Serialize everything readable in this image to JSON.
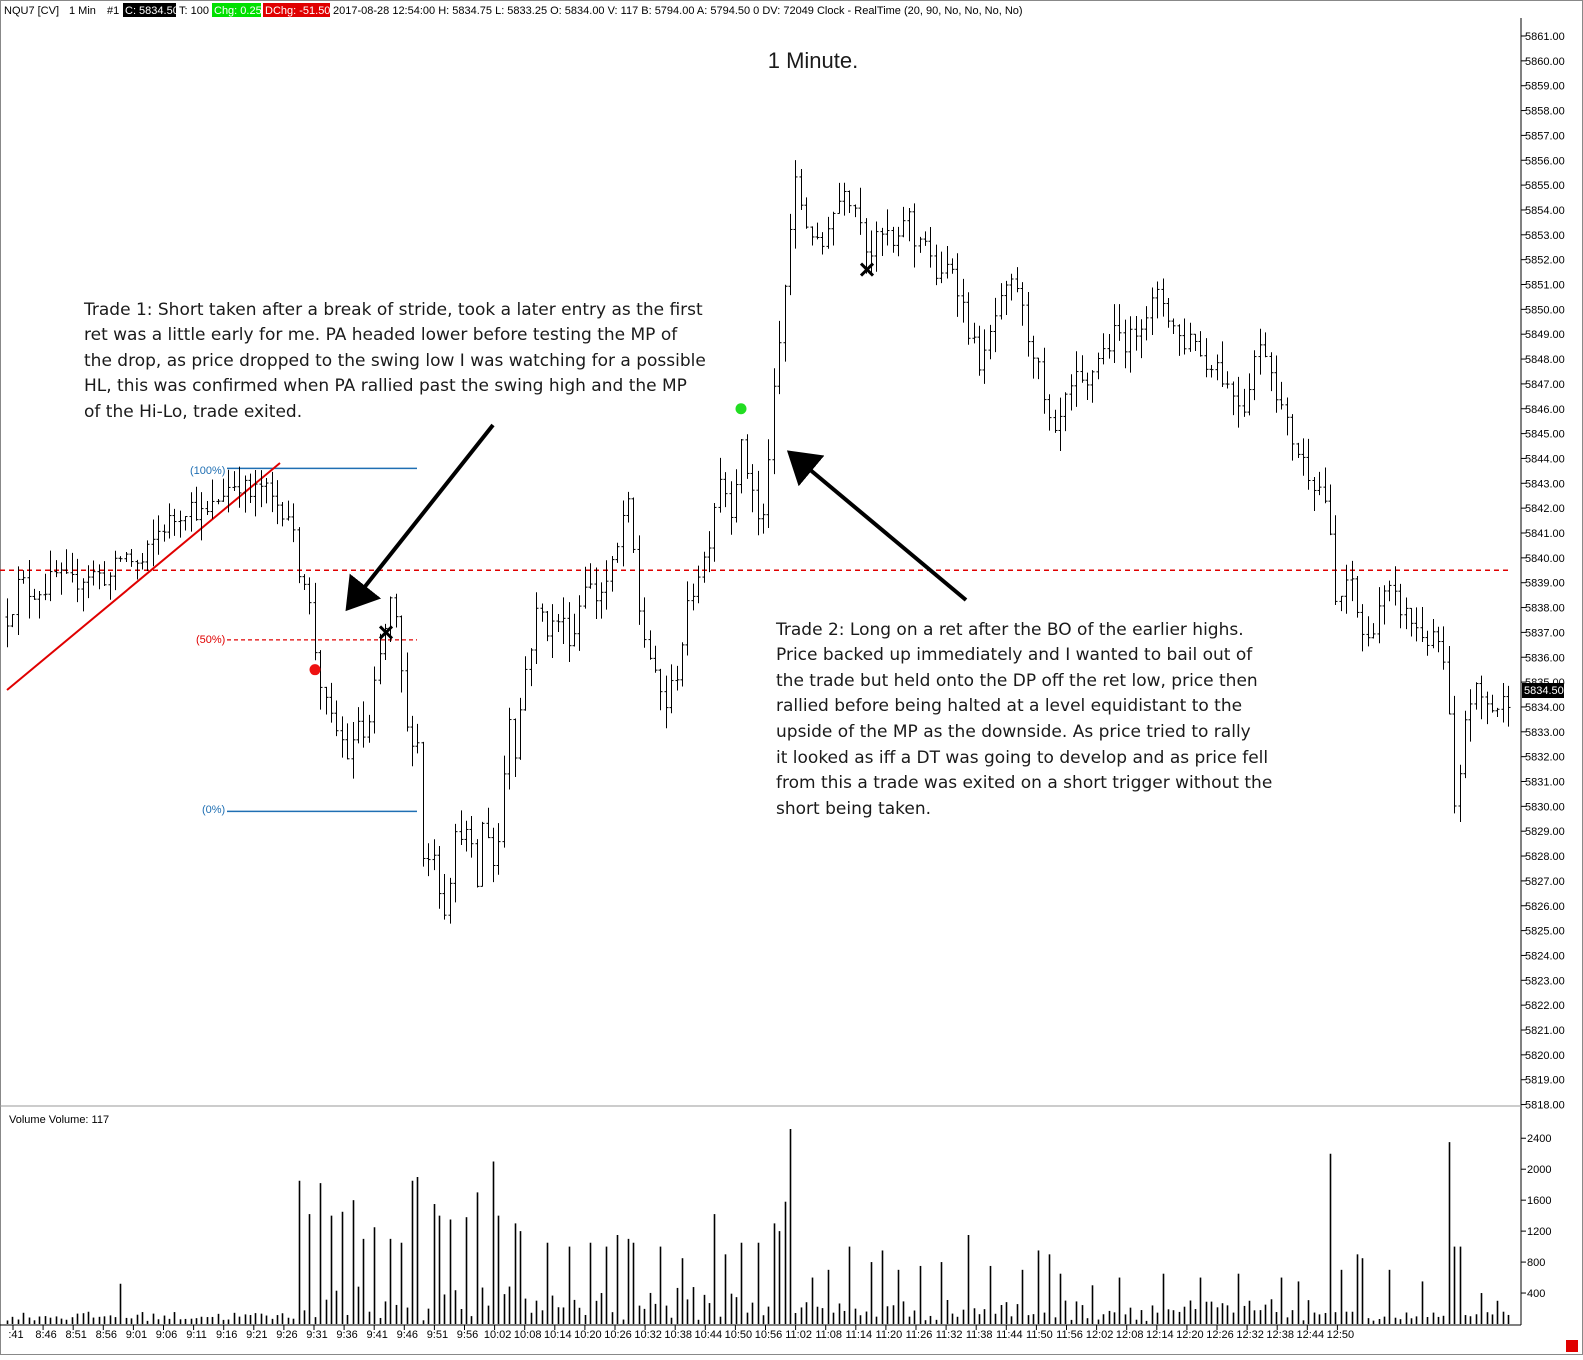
{
  "header": {
    "symbol": "NQU7 [CV]",
    "interval": "1 Min",
    "chart_no": "#1",
    "close": "C: 5834.50",
    "tick": "T: 100",
    "change": "Chg: 0.25",
    "dchange": "DChg: -51.50",
    "details": "2017-08-28 12:54:00 H: 5834.75 L: 5833.25 O: 5834.00 V: 117 B: 5794.00 A: 5794.50 0 DV: 72049 Clock - RealTime   (20, 90, No, No, No, No)"
  },
  "colors": {
    "close_badge": "#000000",
    "chg_badge": "#00e000",
    "dchg_badge": "#e00000",
    "fib_blue": "#1f6fb3",
    "fib_red": "#e00000",
    "ref_line": "#e00000",
    "trend_line": "#e00000",
    "entry_dot_long": "#22dd22",
    "entry_dot_short": "#ee1111"
  },
  "annotations": {
    "title": "1 Minute.",
    "trade1_lines": [
      "Trade 1:  Short taken after a break of stride, took a later entry as the first",
      "ret was a little early for me.  PA headed lower before testing the MP of",
      "the drop, as price dropped to the swing low I was watching for a possible",
      "HL, this was confirmed when PA rallied past the swing high and the MP",
      "of the Hi-Lo, trade exited."
    ],
    "trade2_lines": [
      "Trade 2:  Long on a ret after the BO of the earlier highs.",
      "Price backed up immediately and I wanted to bail out of",
      "the trade but held onto the DP off the ret low, price then",
      "rallied before being halted at a level equidistant to the",
      "upside of the MP as the downside.  As price tried to rally",
      "it looked as iff a DT was going to develop and as price fell",
      "from this a trade was exited on a short trigger without the",
      "short being taken."
    ],
    "fib_100": "(100%)",
    "fib_50": "(50%)",
    "fib_0": "(0%)",
    "last_price_tag": "5834.50",
    "volume_label": "Volume  Volume: 117"
  },
  "chart_data": {
    "type": "ohlc",
    "title": "1 Minute.",
    "price_axis": {
      "min": 5817,
      "max": 5861.5,
      "tick_labels": [
        "5818.00",
        "5819.00",
        "5820.00",
        "5821.00",
        "5822.00",
        "5823.00",
        "5824.00",
        "5825.00",
        "5826.00",
        "5827.00",
        "5828.00",
        "5829.00",
        "5830.00",
        "5831.00",
        "5832.00",
        "5833.00",
        "5834.00",
        "5835.00",
        "5836.00",
        "5837.00",
        "5838.00",
        "5839.00",
        "5840.00",
        "5841.00",
        "5842.00",
        "5843.00",
        "5844.00",
        "5845.00",
        "5846.00",
        "5847.00",
        "5848.00",
        "5849.00",
        "5850.00",
        "5851.00",
        "5852.00",
        "5853.00",
        "5854.00",
        "5855.00",
        "5856.00",
        "5857.00",
        "5858.00",
        "5859.00",
        "5860.00",
        "5861.00"
      ]
    },
    "volume_axis": {
      "min": 0,
      "max": 2700,
      "tick_labels": [
        "400",
        "800",
        "1200",
        "1600",
        "2000",
        "2400"
      ]
    },
    "time_labels": [
      ":41",
      "8:46",
      "8:51",
      "8:56",
      "9:01",
      "9:06",
      "9:11",
      "9:16",
      "9:21",
      "9:26",
      "9:31",
      "9:36",
      "9:41",
      "9:46",
      "9:51",
      "9:56",
      "10:02",
      "10:08",
      "10:14",
      "10:20",
      "10:26",
      "10:32",
      "10:38",
      "10:44",
      "10:50",
      "10:56",
      "11:02",
      "11:08",
      "11:14",
      "11:20",
      "11:26",
      "11:32",
      "11:38",
      "11:44",
      "11:50",
      "11:56",
      "12:02",
      "12:08",
      "12:14",
      "12:20",
      "12:26",
      "12:32",
      "12:38",
      "12:44",
      "12:50"
    ],
    "price_path": [
      [
        0,
        5837.2
      ],
      [
        10,
        5837.8
      ],
      [
        20,
        5839.2
      ],
      [
        25,
        5838.8
      ],
      [
        30,
        5838.6
      ],
      [
        45,
        5838.8
      ],
      [
        55,
        5839.3
      ],
      [
        70,
        5838.9
      ],
      [
        88,
        5839.4
      ],
      [
        110,
        5839.2
      ],
      [
        123,
        5840.2
      ],
      [
        140,
        5839.6
      ],
      [
        160,
        5841.2
      ],
      [
        175,
        5841.6
      ],
      [
        188,
        5842.2
      ],
      [
        205,
        5841.6
      ],
      [
        225,
        5842.8
      ],
      [
        238,
        5843.1
      ],
      [
        250,
        5842.5
      ],
      [
        262,
        5842.9
      ],
      [
        272,
        5842.3
      ],
      [
        290,
        5841.8
      ],
      [
        296,
        5839.8
      ],
      [
        306,
        5839.1
      ],
      [
        314,
        5836.5
      ],
      [
        318,
        5835.7
      ],
      [
        322,
        5834.4
      ],
      [
        332,
        5833.3
      ],
      [
        340,
        5832.8
      ],
      [
        350,
        5831.8
      ],
      [
        358,
        5833.5
      ],
      [
        366,
        5832.4
      ],
      [
        376,
        5835.2
      ],
      [
        384,
        5836.9
      ],
      [
        391,
        5838.3
      ],
      [
        399,
        5836.6
      ],
      [
        404,
        5833.6
      ],
      [
        410,
        5832.2
      ],
      [
        416,
        5834.2
      ],
      [
        420,
        5829.5
      ],
      [
        425,
        5827.0
      ],
      [
        432,
        5828.8
      ],
      [
        440,
        5826.5
      ],
      [
        446,
        5825.8
      ],
      [
        453,
        5828.5
      ],
      [
        462,
        5829.2
      ],
      [
        470,
        5828.4
      ],
      [
        478,
        5826.6
      ],
      [
        484,
        5830.3
      ],
      [
        490,
        5828.1
      ],
      [
        496,
        5827.3
      ],
      [
        502,
        5830.6
      ],
      [
        510,
        5834.1
      ],
      [
        516,
        5831.8
      ],
      [
        522,
        5834.9
      ],
      [
        530,
        5836.4
      ],
      [
        538,
        5838.1
      ],
      [
        548,
        5837.1
      ],
      [
        560,
        5837.6
      ],
      [
        572,
        5836.6
      ],
      [
        584,
        5839.2
      ],
      [
        596,
        5838.4
      ],
      [
        608,
        5839.1
      ],
      [
        618,
        5840.4
      ],
      [
        626,
        5842.6
      ],
      [
        634,
        5840.0
      ],
      [
        640,
        5837.4
      ],
      [
        648,
        5836.3
      ],
      [
        656,
        5834.9
      ],
      [
        666,
        5834.1
      ],
      [
        676,
        5835.3
      ],
      [
        686,
        5837.6
      ],
      [
        696,
        5839.3
      ],
      [
        704,
        5840.0
      ],
      [
        712,
        5841.3
      ],
      [
        718,
        5843.6
      ],
      [
        726,
        5842.6
      ],
      [
        732,
        5841.9
      ],
      [
        740,
        5844.6
      ],
      [
        746,
        5843.6
      ],
      [
        752,
        5842.9
      ],
      [
        758,
        5841.4
      ],
      [
        764,
        5841.6
      ],
      [
        770,
        5845.1
      ],
      [
        776,
        5847.3
      ],
      [
        782,
        5849.6
      ],
      [
        788,
        5852.6
      ],
      [
        796,
        5855.2
      ],
      [
        804,
        5853.6
      ],
      [
        812,
        5853.1
      ],
      [
        820,
        5852.1
      ],
      [
        828,
        5853.6
      ],
      [
        836,
        5854.1
      ],
      [
        844,
        5855.1
      ],
      [
        852,
        5854.3
      ],
      [
        860,
        5853.9
      ],
      [
        868,
        5852.1
      ],
      [
        876,
        5852.7
      ],
      [
        886,
        5853.1
      ],
      [
        896,
        5852.1
      ],
      [
        906,
        5854.3
      ],
      [
        914,
        5852.6
      ],
      [
        922,
        5853.3
      ],
      [
        932,
        5851.6
      ],
      [
        942,
        5851.1
      ],
      [
        950,
        5852.1
      ],
      [
        960,
        5850.6
      ],
      [
        970,
        5848.9
      ],
      [
        982,
        5847.6
      ],
      [
        994,
        5849.6
      ],
      [
        1006,
        5850.6
      ],
      [
        1016,
        5851.1
      ],
      [
        1026,
        5849.1
      ],
      [
        1036,
        5848.1
      ],
      [
        1044,
        5846.1
      ],
      [
        1054,
        5844.6
      ],
      [
        1064,
        5846.1
      ],
      [
        1076,
        5847.1
      ],
      [
        1086,
        5846.6
      ],
      [
        1096,
        5848.1
      ],
      [
        1106,
        5848.4
      ],
      [
        1116,
        5849.1
      ],
      [
        1128,
        5848.6
      ],
      [
        1140,
        5849.6
      ],
      [
        1150,
        5850.1
      ],
      [
        1160,
        5850.6
      ],
      [
        1170,
        5849.6
      ],
      [
        1182,
        5848.6
      ],
      [
        1194,
        5849.1
      ],
      [
        1204,
        5847.6
      ],
      [
        1214,
        5848.1
      ],
      [
        1224,
        5847.1
      ],
      [
        1234,
        5846.6
      ],
      [
        1244,
        5846.1
      ],
      [
        1254,
        5848.1
      ],
      [
        1264,
        5848.6
      ],
      [
        1274,
        5847.1
      ],
      [
        1284,
        5845.6
      ],
      [
        1294,
        5844.6
      ],
      [
        1304,
        5843.8
      ],
      [
        1314,
        5843.1
      ],
      [
        1324,
        5842.6
      ],
      [
        1330,
        5840.6
      ],
      [
        1334,
        5838.1
      ],
      [
        1344,
        5838.6
      ],
      [
        1352,
        5839.1
      ],
      [
        1360,
        5837.1
      ],
      [
        1368,
        5836.6
      ],
      [
        1378,
        5838.1
      ],
      [
        1388,
        5838.6
      ],
      [
        1398,
        5838.1
      ],
      [
        1408,
        5837.6
      ],
      [
        1418,
        5837.1
      ],
      [
        1430,
        5836.6
      ],
      [
        1440,
        5836.6
      ],
      [
        1448,
        5834.1
      ],
      [
        1454,
        5829.6
      ],
      [
        1460,
        5831.1
      ],
      [
        1466,
        5834.1
      ],
      [
        1476,
        5834.6
      ],
      [
        1486,
        5834.1
      ],
      [
        1496,
        5833.9
      ],
      [
        1510,
        5834.5
      ]
    ],
    "volume_spikes": [
      [
        123,
        520
      ],
      [
        296,
        1850
      ],
      [
        308,
        1420
      ],
      [
        320,
        1820
      ],
      [
        330,
        1400
      ],
      [
        340,
        1450
      ],
      [
        350,
        1600
      ],
      [
        364,
        1100
      ],
      [
        376,
        1250
      ],
      [
        390,
        1100
      ],
      [
        400,
        1050
      ],
      [
        412,
        1850
      ],
      [
        420,
        1900
      ],
      [
        432,
        1550
      ],
      [
        440,
        1400
      ],
      [
        452,
        1350
      ],
      [
        466,
        1380
      ],
      [
        478,
        1700
      ],
      [
        492,
        2100
      ],
      [
        500,
        1400
      ],
      [
        512,
        1300
      ],
      [
        522,
        1200
      ],
      [
        546,
        1050
      ],
      [
        570,
        1000
      ],
      [
        588,
        1050
      ],
      [
        606,
        1000
      ],
      [
        618,
        1150
      ],
      [
        626,
        1100
      ],
      [
        634,
        1050
      ],
      [
        660,
        1000
      ],
      [
        682,
        850
      ],
      [
        712,
        1420
      ],
      [
        726,
        900
      ],
      [
        742,
        1050
      ],
      [
        756,
        1050
      ],
      [
        772,
        1300
      ],
      [
        780,
        1200
      ],
      [
        784,
        1580
      ],
      [
        790,
        2520
      ],
      [
        810,
        600
      ],
      [
        830,
        700
      ],
      [
        850,
        1000
      ],
      [
        870,
        800
      ],
      [
        882,
        950
      ],
      [
        900,
        700
      ],
      [
        920,
        750
      ],
      [
        940,
        800
      ],
      [
        968,
        1150
      ],
      [
        990,
        750
      ],
      [
        1020,
        700
      ],
      [
        1040,
        950
      ],
      [
        1048,
        900
      ],
      [
        1060,
        650
      ],
      [
        1090,
        500
      ],
      [
        1120,
        600
      ],
      [
        1160,
        650
      ],
      [
        1200,
        600
      ],
      [
        1240,
        650
      ],
      [
        1280,
        600
      ],
      [
        1300,
        550
      ],
      [
        1330,
        2200
      ],
      [
        1340,
        700
      ],
      [
        1356,
        900
      ],
      [
        1364,
        850
      ],
      [
        1390,
        700
      ],
      [
        1420,
        550
      ],
      [
        1450,
        2350
      ],
      [
        1456,
        1000
      ],
      [
        1462,
        1000
      ],
      [
        1480,
        400
      ],
      [
        1500,
        300
      ]
    ],
    "volume_last": 117,
    "reference_lines": {
      "dashed_level": 5839.5,
      "fib_100": 5843.6,
      "fib_50": 5836.7,
      "fib_0": 5829.8
    },
    "markers": [
      {
        "type": "long_entry_dot",
        "price": 5846.0
      },
      {
        "type": "short_entry_dot",
        "price": 5835.5
      },
      {
        "type": "exit_x",
        "price": 5837.0
      },
      {
        "type": "exit_x",
        "price": 5851.6
      }
    ],
    "grid": false,
    "legend": "none"
  }
}
